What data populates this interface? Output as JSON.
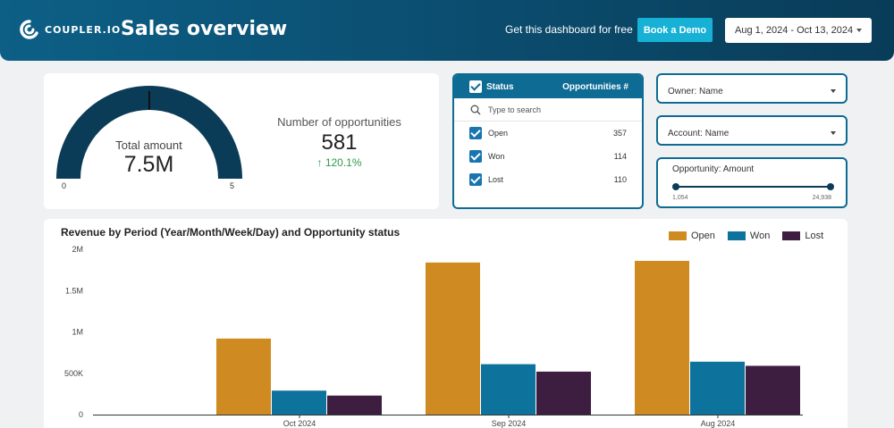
{
  "header": {
    "logo_text": "COUPLER.IO",
    "title": "Sales overview",
    "free_link": "Get this dashboard for free",
    "demo_button": "Book a Demo",
    "date_range": "Aug 1, 2024 - Oct 13, 2024"
  },
  "gauge": {
    "label": "Total amount",
    "value": "7.5M",
    "min": "0",
    "max": "5",
    "fill_fraction": 1.0
  },
  "opportunities": {
    "label": "Number of opportunities",
    "value": "581",
    "delta": "120.1%"
  },
  "status_filter": {
    "header_label": "Status",
    "header_count": "Opportunities #",
    "search_placeholder": "Type to search",
    "rows": [
      {
        "label": "Open",
        "count": "357"
      },
      {
        "label": "Won",
        "count": "114"
      },
      {
        "label": "Lost",
        "count": "110"
      }
    ]
  },
  "filters": {
    "owner": "Owner: Name",
    "account": "Account: Name",
    "amount_label": "Opportunity: Amount",
    "amount_min": "1,054",
    "amount_max": "24,938"
  },
  "colors": {
    "open": "#d08a22",
    "won": "#0d739d",
    "lost": "#3d1e40"
  },
  "chart_data": {
    "type": "bar",
    "title": "Revenue by Period (Year/Month/Week/Day) and Opportunity status",
    "categories": [
      "Oct 2024",
      "Sep 2024",
      "Aug 2024"
    ],
    "series": [
      {
        "name": "Open",
        "values": [
          920000,
          1840000,
          1860000
        ]
      },
      {
        "name": "Won",
        "values": [
          290000,
          610000,
          640000
        ]
      },
      {
        "name": "Lost",
        "values": [
          230000,
          520000,
          590000
        ]
      }
    ],
    "y_ticks": [
      {
        "value": 0,
        "label": "0"
      },
      {
        "value": 500000,
        "label": "500K"
      },
      {
        "value": 1000000,
        "label": "1M"
      },
      {
        "value": 1500000,
        "label": "1.5M"
      },
      {
        "value": 2000000,
        "label": "2M"
      }
    ],
    "ylim": [
      0,
      2000000
    ],
    "xlabel": "",
    "ylabel": "",
    "legend_position": "top-right"
  }
}
